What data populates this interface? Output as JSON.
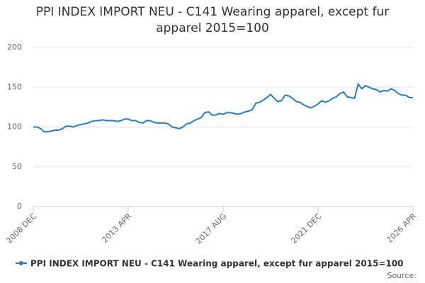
{
  "chart_data": {
    "type": "line",
    "title": "PPI INDEX IMPORT NEU - C141 Wearing apparel, except fur apparel 2015=100",
    "source": "Source:",
    "categories": [
      "2008 DEC",
      null,
      null,
      null,
      null,
      null,
      null,
      null,
      null,
      null,
      null,
      null,
      null,
      null,
      null,
      null,
      null,
      null,
      null,
      null,
      null,
      null,
      null,
      null,
      null,
      null,
      "2013 APR",
      null,
      null,
      null,
      null,
      null,
      null,
      null,
      null,
      null,
      null,
      null,
      null,
      null,
      null,
      null,
      null,
      null,
      null,
      null,
      null,
      null,
      null,
      null,
      null,
      null,
      "2017 AUG",
      null,
      null,
      null,
      null,
      null,
      null,
      null,
      null,
      null,
      null,
      null,
      null,
      null,
      null,
      null,
      null,
      null,
      null,
      null,
      null,
      null,
      null,
      null,
      null,
      null,
      "2021 DEC",
      null,
      null,
      null,
      null,
      null,
      null,
      null,
      null,
      null,
      null,
      null,
      null,
      null,
      null,
      null,
      null,
      null,
      null,
      null,
      null,
      null,
      null,
      null,
      null,
      null,
      "2026 APR"
    ],
    "series": [
      {
        "name": "PPI INDEX IMPORT NEU - C141 Wearing apparel, except fur apparel 2015=100",
        "color": "#2b7bba",
        "values": [
          100,
          100,
          98,
          94,
          94,
          95,
          96,
          96,
          98,
          101,
          101,
          100,
          102,
          103,
          104,
          105,
          107,
          108,
          108,
          109,
          108,
          108,
          108,
          107,
          108,
          110,
          110,
          108,
          108,
          106,
          105,
          108,
          108,
          106,
          105,
          105,
          105,
          104,
          100,
          99,
          98,
          100,
          104,
          105,
          108,
          110,
          112,
          118,
          119,
          115,
          115,
          117,
          116,
          118,
          118,
          117,
          116,
          117,
          119,
          120,
          122,
          130,
          131,
          134,
          137,
          141,
          136,
          132,
          133,
          140,
          139,
          136,
          132,
          131,
          128,
          126,
          124,
          126,
          129,
          133,
          131,
          133,
          136,
          138,
          142,
          144,
          138,
          137,
          136,
          154,
          148,
          152,
          150,
          148,
          147,
          144,
          146,
          145,
          148,
          146,
          142,
          140,
          140,
          137,
          137
        ]
      }
    ],
    "ylim": [
      0,
      200
    ],
    "yticks": [
      0,
      50,
      100,
      150,
      200
    ],
    "grid": true,
    "legend": "bottom"
  }
}
